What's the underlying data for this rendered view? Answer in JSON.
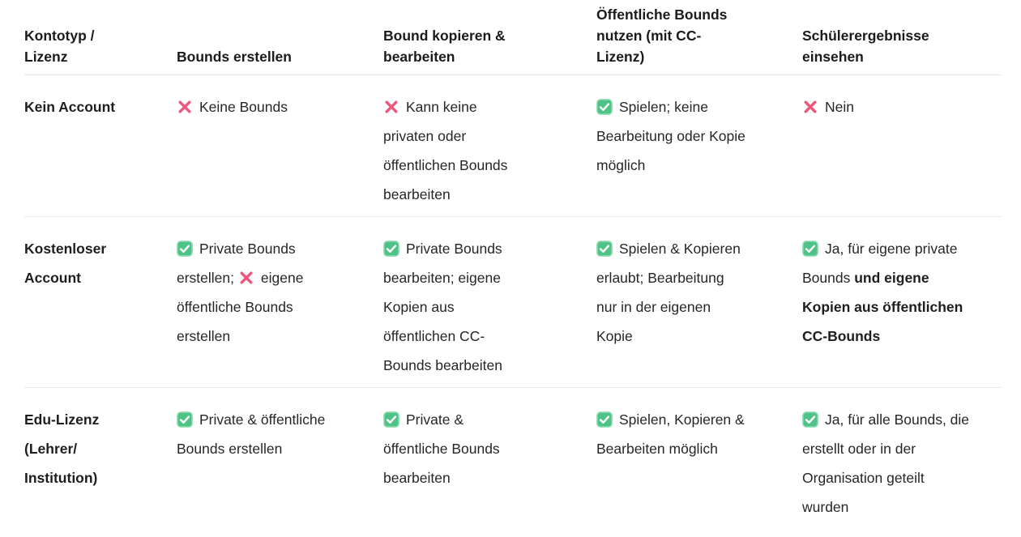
{
  "table": {
    "columns": [
      "Kontotyp / Lizenz",
      "Bounds erstellen",
      "Bound kopieren & bearbeiten",
      "Öffentliche Bounds nutzen (mit CC-Lizenz)",
      "Schülerergebnisse einsehen"
    ],
    "rows": [
      {
        "label": "Kein Account",
        "cells": [
          [
            {
              "icon": "cross"
            },
            {
              "text": "Keine Bounds"
            }
          ],
          [
            {
              "icon": "cross"
            },
            {
              "text": "Kann keine privaten oder öffentlichen Bounds bearbeiten"
            }
          ],
          [
            {
              "icon": "check"
            },
            {
              "text": "Spielen; keine Bearbeitung oder Kopie möglich"
            }
          ],
          [
            {
              "icon": "cross"
            },
            {
              "text": "Nein"
            }
          ]
        ]
      },
      {
        "label": "Kostenloser Account",
        "cells": [
          [
            {
              "icon": "check"
            },
            {
              "text": "Private Bounds erstellen;"
            },
            {
              "icon": "cross"
            },
            {
              "text": "eigene öffentliche Bounds erstellen"
            }
          ],
          [
            {
              "icon": "check"
            },
            {
              "text": "Private Bounds bearbeiten; eigene Kopien aus öffentlichen CC-Bounds bearbeiten"
            }
          ],
          [
            {
              "icon": "check"
            },
            {
              "text": "Spielen & Kopieren erlaubt; Bearbeitung nur in der eigenen Kopie"
            }
          ],
          [
            {
              "icon": "check"
            },
            {
              "text": "Ja, für eigene private Bounds"
            },
            {
              "text": "und eigene Kopien aus öffentlichen CC-Bounds",
              "bold": true
            }
          ]
        ]
      },
      {
        "label": "Edu-Lizenz (Lehrer/ Institution)",
        "cells": [
          [
            {
              "icon": "check"
            },
            {
              "text": "Private & öffentliche Bounds erstellen"
            }
          ],
          [
            {
              "icon": "check"
            },
            {
              "text": "Private & öffentliche Bounds bearbeiten"
            }
          ],
          [
            {
              "icon": "check"
            },
            {
              "text": "Spielen, Kopieren & Bearbeiten möglich"
            }
          ],
          [
            {
              "icon": "check"
            },
            {
              "text": "Ja, für alle Bounds, die erstellt oder in der Organisation geteilt wurden"
            }
          ]
        ]
      }
    ]
  },
  "icons": {
    "check": "check-icon",
    "cross": "cross-icon"
  },
  "colors": {
    "check_fill": "#4ec287",
    "check_border": "#8edcb2",
    "check_mark": "#ffffff",
    "cross_stroke": "#f0557a",
    "divider": "#e9e9e9",
    "header_text": "#1b1b1b",
    "body_text": "#262626"
  }
}
